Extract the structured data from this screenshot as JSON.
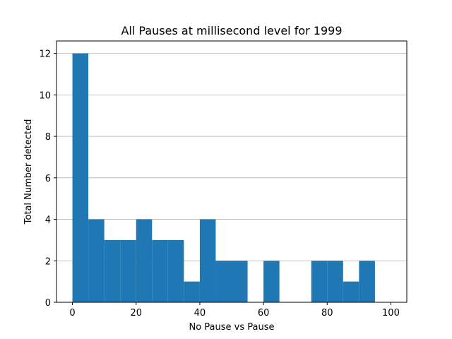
{
  "chart_data": {
    "type": "bar",
    "title": "All Pauses at millisecond level for 1999",
    "xlabel": "No Pause vs Pause",
    "ylabel": "Total Number detected",
    "bin_edges": [
      0,
      5,
      10,
      15,
      20,
      25,
      30,
      35,
      40,
      45,
      50,
      55,
      60,
      65,
      70,
      75,
      80,
      85,
      90,
      95,
      100
    ],
    "values": [
      12,
      4,
      3,
      3,
      4,
      3,
      3,
      1,
      4,
      2,
      2,
      0,
      2,
      0,
      0,
      2,
      2,
      1,
      2,
      0
    ],
    "xlim": [
      -5,
      105
    ],
    "ylim": [
      0,
      12.6
    ],
    "xticks": [
      0,
      20,
      40,
      60,
      80,
      100
    ],
    "yticks": [
      0,
      2,
      4,
      6,
      8,
      10,
      12
    ],
    "grid": "horizontal",
    "bar_color": "#1f77b4",
    "grid_color": "#b0b0b0"
  }
}
